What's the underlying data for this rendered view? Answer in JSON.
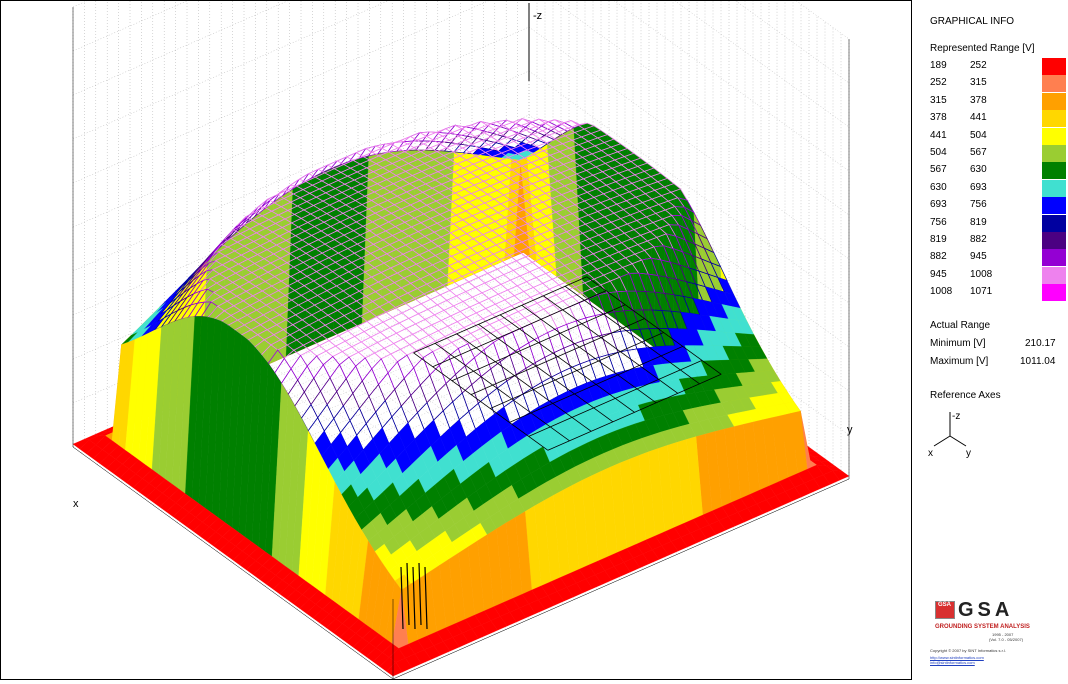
{
  "chart_data": {
    "type": "surface",
    "title": "",
    "axes": {
      "x": "x",
      "y": "y",
      "z": "-z"
    },
    "legend_title": "Represented Range [V]",
    "ranges": [
      {
        "from": "189",
        "to": "252",
        "color": "#ff0000"
      },
      {
        "from": "252",
        "to": "315",
        "color": "#ff7f50"
      },
      {
        "from": "315",
        "to": "378",
        "color": "#ffa000"
      },
      {
        "from": "378",
        "to": "441",
        "color": "#ffd700"
      },
      {
        "from": "441",
        "to": "504",
        "color": "#ffff00"
      },
      {
        "from": "504",
        "to": "567",
        "color": "#9acd32"
      },
      {
        "from": "567",
        "to": "630",
        "color": "#008000"
      },
      {
        "from": "630",
        "to": "693",
        "color": "#40e0d0"
      },
      {
        "from": "693",
        "to": "756",
        "color": "#0000ff"
      },
      {
        "from": "756",
        "to": "819",
        "color": "#0000a0"
      },
      {
        "from": "819",
        "to": "882",
        "color": "#4b0082"
      },
      {
        "from": "882",
        "to": "945",
        "color": "#9400d3"
      },
      {
        "from": "945",
        "to": "1008",
        "color": "#ee82ee"
      },
      {
        "from": "1008",
        "to": "1071",
        "color": "#ff00ff"
      }
    ],
    "actual_range": {
      "minimum": 210.17,
      "maximum": 1011.04
    }
  },
  "panel": {
    "heading": "GRAPHICAL INFO",
    "range_heading": "Represented Range [V]",
    "actual_heading": "Actual Range",
    "min_label": "Minimum [V]",
    "min_value": "210.17",
    "max_label": "Maximum [V]",
    "max_value": "1011.04",
    "axes_heading": "Reference Axes",
    "axis_z": "-z",
    "axis_x": "x",
    "axis_y": "y"
  },
  "logo": {
    "mark": "GSA",
    "box_text": "GSA",
    "subtitle": "GROUNDING SYSTEM ANALYSIS",
    "years": "1995 - 2007",
    "version": "(Vol. 7.0 - 05/2007)",
    "copyright": "Copyright © 2007 by SINT Informatics s.r.l.",
    "website": "http://www.sintinformatics.com",
    "email": "info@sintinformatics.com"
  }
}
